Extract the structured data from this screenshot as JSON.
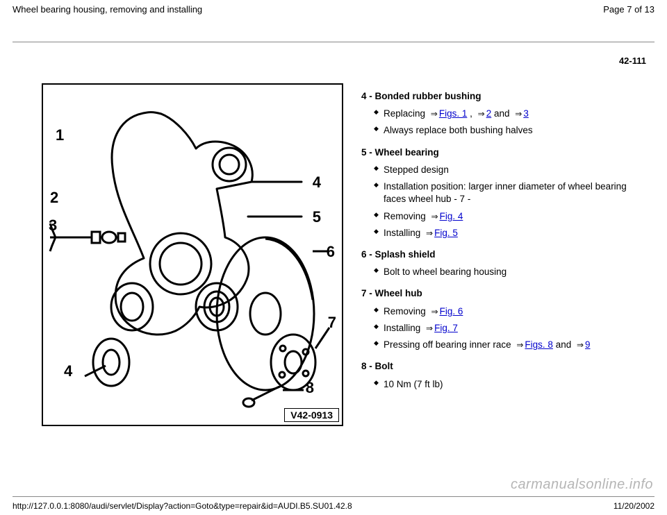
{
  "header": {
    "title": "Wheel bearing housing, removing and installing",
    "page_of": "Page 7 of 13"
  },
  "page_ref": "42-111",
  "diagram": {
    "callouts": {
      "c1": "1",
      "c2": "2",
      "c3": "3",
      "c4a": "4",
      "c4b": "4",
      "c5": "5",
      "c6": "6",
      "c7": "7",
      "c8": "8"
    },
    "code": "V42-0913"
  },
  "sections": [
    {
      "head": "4 - Bonded rubber bushing",
      "items": [
        {
          "pre": "Replacing ",
          "links": [
            {
              "arrow": true,
              "text": "Figs. 1"
            },
            {
              "plain": " , "
            },
            {
              "arrow": true,
              "text": "2"
            },
            {
              "plain": " and "
            },
            {
              "arrow": true,
              "text": "3"
            }
          ]
        },
        {
          "pre": "Always replace both bushing halves",
          "links": []
        }
      ]
    },
    {
      "head": "5 - Wheel bearing",
      "items": [
        {
          "pre": "Stepped design",
          "links": []
        },
        {
          "pre": "Installation position: larger inner diameter of wheel bearing faces wheel hub - 7 -",
          "links": []
        },
        {
          "pre": "Removing ",
          "links": [
            {
              "arrow": true,
              "text": "Fig. 4"
            }
          ]
        },
        {
          "pre": "Installing ",
          "links": [
            {
              "arrow": true,
              "text": "Fig. 5"
            }
          ]
        }
      ]
    },
    {
      "head": "6 - Splash shield",
      "items": [
        {
          "pre": "Bolt to wheel bearing housing",
          "links": []
        }
      ]
    },
    {
      "head": "7 - Wheel hub",
      "items": [
        {
          "pre": "Removing ",
          "links": [
            {
              "arrow": true,
              "text": "Fig. 6"
            }
          ]
        },
        {
          "pre": "Installing ",
          "links": [
            {
              "arrow": true,
              "text": "Fig. 7"
            }
          ]
        },
        {
          "pre": "Pressing off bearing inner race ",
          "links": [
            {
              "arrow": true,
              "text": "Figs. 8"
            },
            {
              "plain": " and "
            },
            {
              "arrow": true,
              "text": "9"
            }
          ]
        }
      ]
    },
    {
      "head": "8 - Bolt",
      "items": [
        {
          "pre": "10 Nm (7 ft lb)",
          "links": []
        }
      ]
    }
  ],
  "footer": {
    "url": "http://127.0.0.1:8080/audi/servlet/Display?action=Goto&type=repair&id=AUDI.B5.SU01.42.8",
    "date": "11/20/2002"
  },
  "watermark": "carmanualsonline.info"
}
